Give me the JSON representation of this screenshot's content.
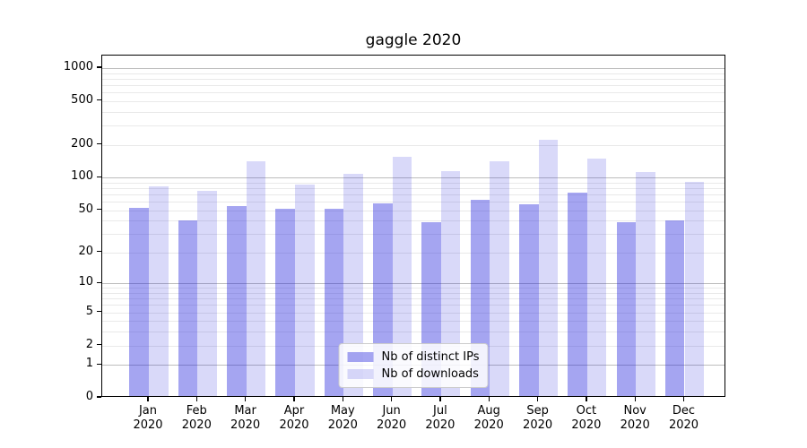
{
  "title": "gaggle 2020",
  "chart_data": {
    "type": "bar",
    "title": "gaggle 2020",
    "categories": [
      "Jan",
      "Feb",
      "Mar",
      "Apr",
      "May",
      "Jun",
      "Jul",
      "Aug",
      "Sep",
      "Oct",
      "Nov",
      "Dec"
    ],
    "year_suffix": "2020",
    "series": [
      {
        "name": "Nb of distinct IPs",
        "key": "distinct-ips",
        "color": "rgba(30,30,220,0.40)",
        "values": [
          51,
          39,
          53,
          50,
          50,
          56,
          37,
          60,
          55,
          70,
          37,
          39
        ]
      },
      {
        "name": "Nb of downloads",
        "key": "downloads",
        "color": "rgba(30,30,220,0.17)",
        "values": [
          80,
          72,
          135,
          83,
          105,
          150,
          110,
          135,
          213,
          143,
          108,
          88
        ]
      }
    ],
    "yscale": "log1p",
    "y_ticks": [
      0,
      1,
      2,
      5,
      10,
      20,
      50,
      100,
      200,
      500,
      1000
    ],
    "ylim": [
      0,
      1300
    ],
    "xlabel": "",
    "ylabel": "",
    "grid": true,
    "legend_position": "lower center",
    "grid_minor_color": "#e9e9e9",
    "grid_major_color": "#bdbdbd",
    "axis_color": "#000000"
  }
}
